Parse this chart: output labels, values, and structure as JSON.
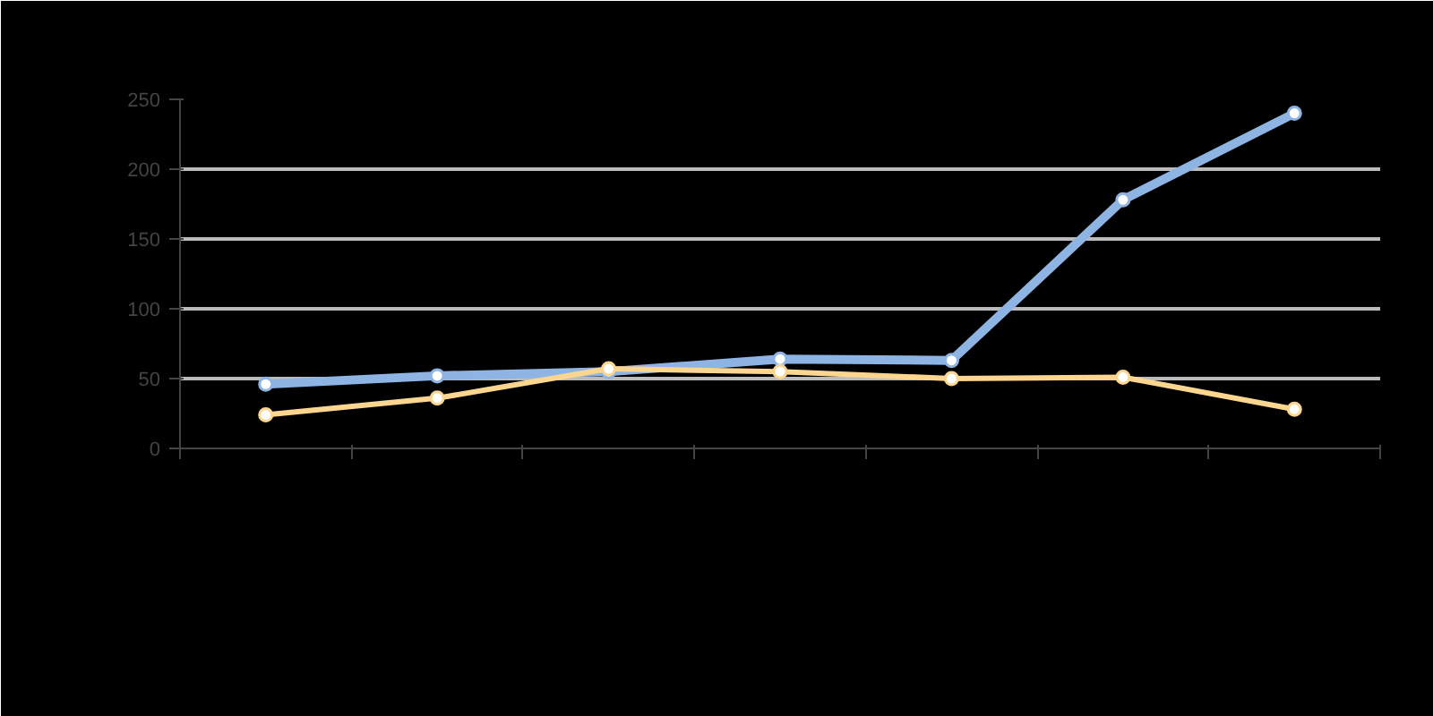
{
  "chart_data": {
    "type": "line",
    "categories": [
      null,
      null,
      null,
      null,
      null,
      null,
      null
    ],
    "series": [
      {
        "color": "#8eb4e3",
        "values": [
          46,
          52,
          55,
          64,
          63,
          178,
          240
        ]
      },
      {
        "color": "#fcd58f",
        "values": [
          24,
          36,
          57,
          55,
          50,
          51,
          28
        ]
      }
    ],
    "ylim": [
      0,
      250
    ],
    "yticks": [
      0,
      50,
      100,
      150,
      200,
      250
    ],
    "grid": "y",
    "marker": "circle",
    "line_style": "solid"
  }
}
